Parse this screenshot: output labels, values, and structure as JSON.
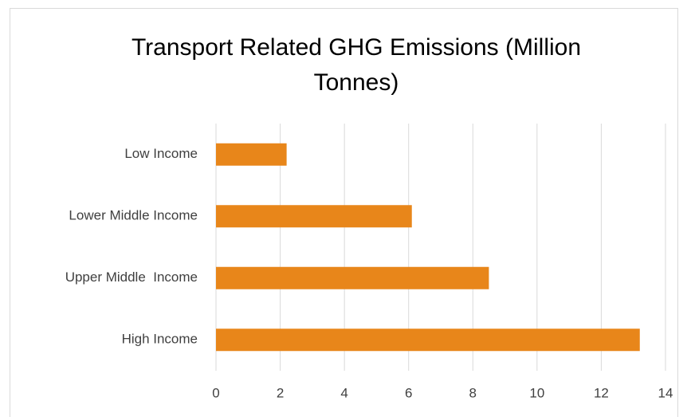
{
  "chart_data": {
    "type": "bar",
    "orientation": "horizontal",
    "title": "Transport Related GHG Emissions (Million Tonnes)",
    "categories": [
      "Low Income",
      "Lower Middle Income",
      "Upper Middle  Income",
      "High Income"
    ],
    "values": [
      2.2,
      6.1,
      8.5,
      13.2
    ],
    "color": "#e8861a",
    "xlim": [
      0,
      14
    ],
    "xticks": [
      0,
      2,
      4,
      6,
      8,
      10,
      12,
      14
    ],
    "grid": true
  }
}
